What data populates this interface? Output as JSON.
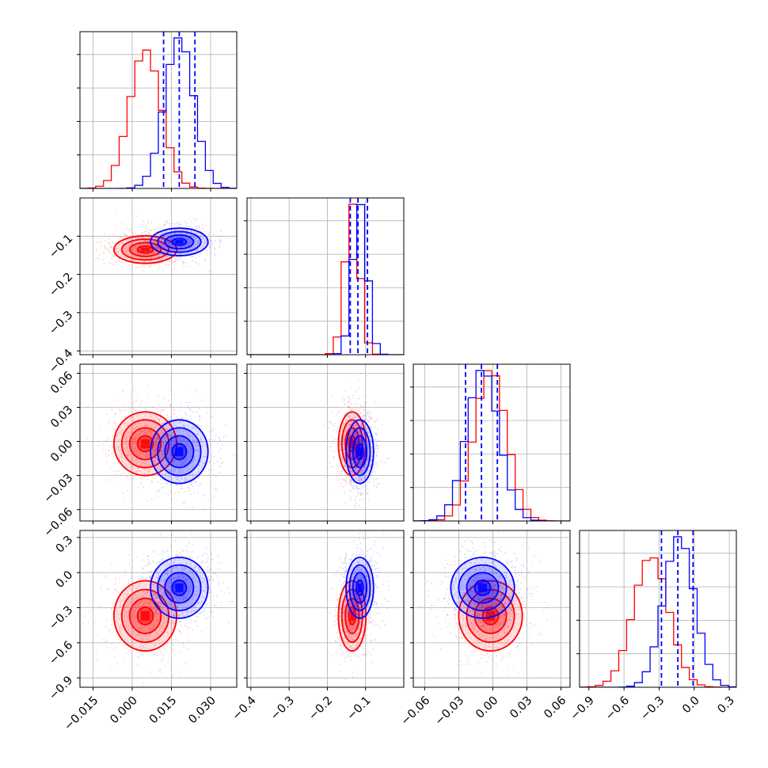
{
  "colors": {
    "series_a": "#ff0000",
    "series_b": "#0000ff",
    "grid": "#b0b0b0",
    "frame": "#000000"
  },
  "chart_data": {
    "type": "corner",
    "grid": true,
    "parameters": [
      {
        "range": [
          -0.02,
          0.04
        ],
        "ticks": [
          -0.015,
          0.0,
          0.015,
          0.03
        ],
        "tick_labels": [
          "−0.015",
          "0.000",
          "0.015",
          "0.030"
        ]
      },
      {
        "range": [
          -0.41,
          0.0
        ],
        "ticks": [
          -0.4,
          -0.3,
          -0.2,
          -0.1
        ],
        "tick_labels": [
          "−0.4",
          "−0.3",
          "−0.2",
          "−0.1"
        ]
      },
      {
        "range": [
          -0.07,
          0.068
        ],
        "ticks": [
          -0.06,
          -0.03,
          0.0,
          0.03,
          0.06
        ],
        "tick_labels": [
          "−0.06",
          "−0.03",
          "0.00",
          "0.03",
          "0.06"
        ]
      },
      {
        "range": [
          -0.98,
          0.36
        ],
        "ticks": [
          -0.9,
          -0.6,
          -0.3,
          0.0,
          0.3
        ],
        "tick_labels": [
          "−0.9",
          "−0.6",
          "−0.3",
          "0.0",
          "0.3"
        ]
      }
    ],
    "series": [
      {
        "color": "#ff0000",
        "mean": [
          0.005,
          -0.135,
          -0.002,
          -0.37
        ],
        "std": [
          0.006,
          0.018,
          0.014,
          0.15
        ]
      },
      {
        "color": "#0000ff",
        "mean": [
          0.018,
          -0.115,
          -0.009,
          -0.13
        ],
        "std": [
          0.0055,
          0.018,
          0.014,
          0.13
        ]
      }
    ],
    "quantile_lines": {
      "color": "#0000ff",
      "values": [
        [
          0.012,
          0.018,
          0.024
        ],
        [
          -0.14,
          -0.12,
          -0.095
        ],
        [
          -0.024,
          -0.01,
          0.004
        ],
        [
          -0.28,
          -0.14,
          -0.01
        ]
      ]
    }
  }
}
